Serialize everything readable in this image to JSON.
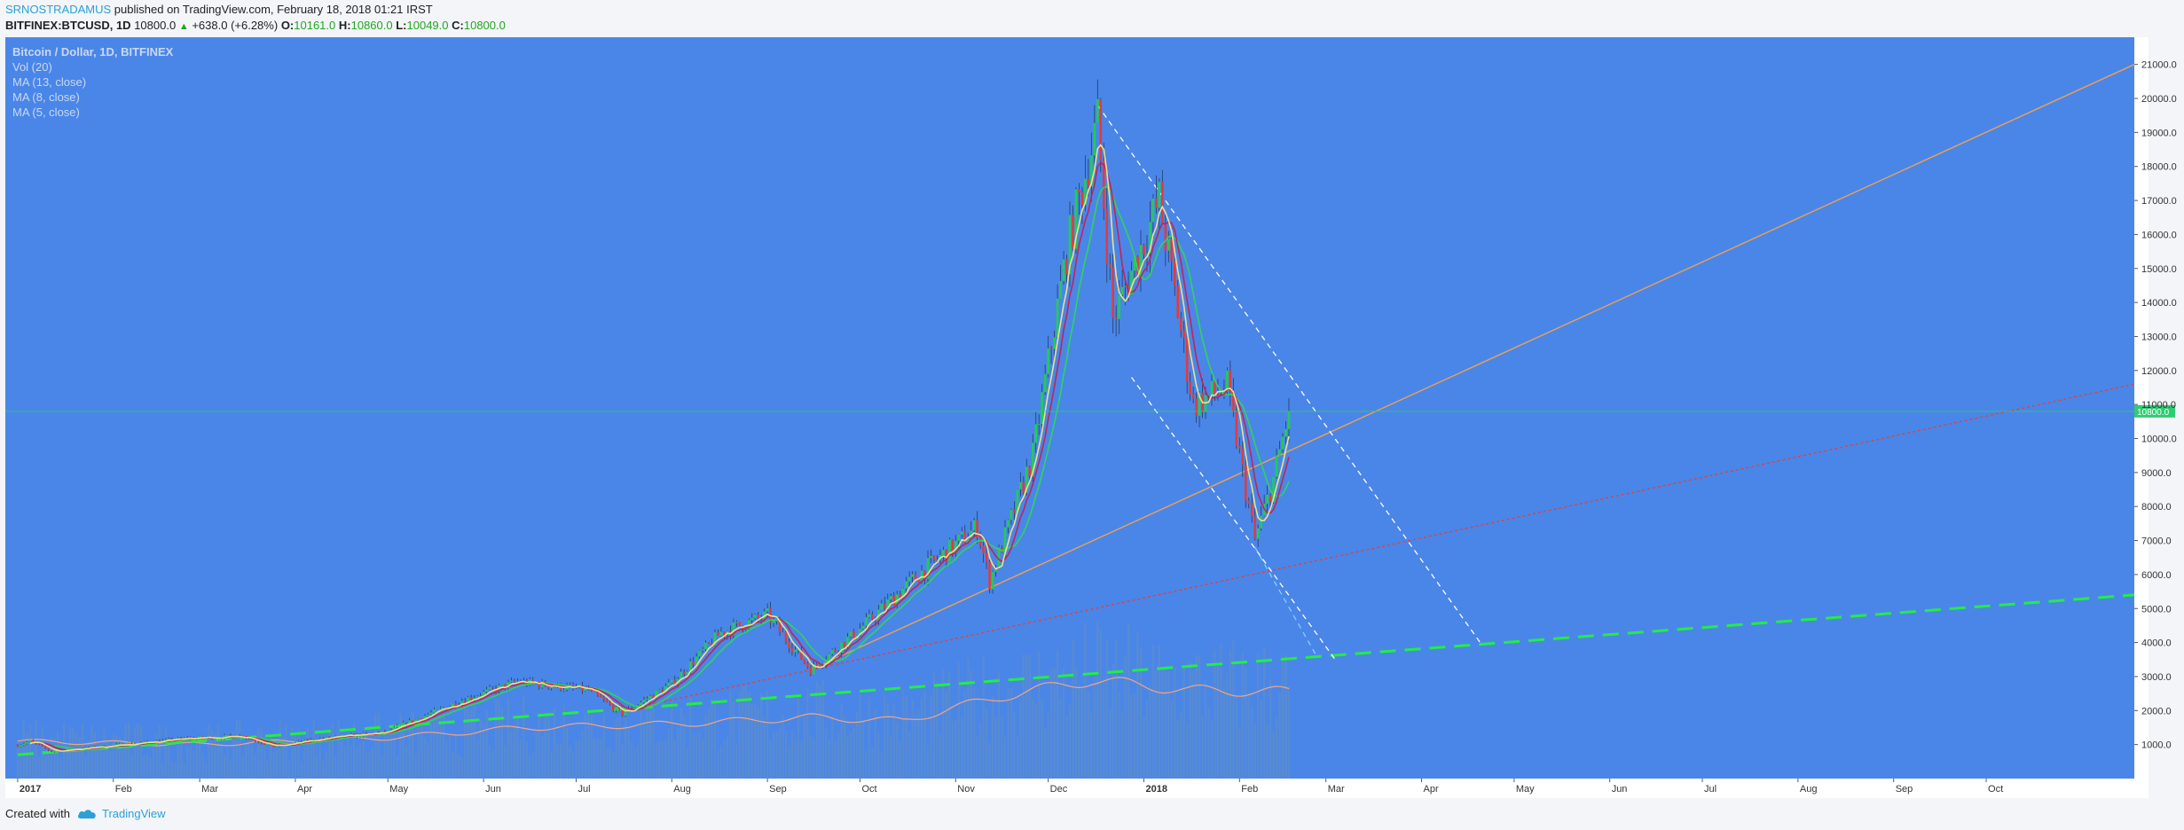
{
  "header": {
    "author": "SRNOSTRADAMUS",
    "published": " published on TradingView.com, February 18, 2018 01:21 IRST",
    "symbol": "BITFINEX:BTCUSD, 1D",
    "last": "10800.0",
    "change": "+638.0 (+6.28%)",
    "o_label": "O:",
    "o_value": "10161.0",
    "h_label": "H:",
    "h_value": "10860.0",
    "l_label": "L:",
    "l_value": "10049.0",
    "c_label": "C:",
    "c_value": "10800.0"
  },
  "legend": {
    "title": "Bitcoin / Dollar, 1D, BITFINEX",
    "items": [
      "Vol (20)",
      "MA (13, close)",
      "MA (8, close)",
      "MA (5, close)"
    ]
  },
  "footer": {
    "created_with": "Created with",
    "brand": "TradingView"
  },
  "colors": {
    "background": "#4a86e8",
    "up": "#22cc55",
    "down": "#e23b3b",
    "ma13": "#2fd45a",
    "ma8": "#c0245a",
    "ma5": "#f0e08a",
    "vol_ma": "#f4a582",
    "volume": "#5a8ccc",
    "orange_line": "#f0a050",
    "red_line": "#e04040",
    "green_line": "#22ee44",
    "channel": "#ffffff",
    "current_price": "#2ecc71"
  },
  "chart_data": {
    "type": "candlestick",
    "title": "Bitcoin / Dollar, 1D, BITFINEX",
    "ylim": [
      0,
      21800
    ],
    "y_ticks": [
      1000,
      2000,
      3000,
      4000,
      5000,
      6000,
      7000,
      8000,
      9000,
      10000,
      11000,
      12000,
      13000,
      14000,
      15000,
      16000,
      17000,
      18000,
      19000,
      20000,
      21000
    ],
    "y_tick_labels": [
      "1000.0",
      "2000.0",
      "3000.0",
      "4000.0",
      "5000.0",
      "6000.0",
      "7000.0",
      "8000.0",
      "9000.0",
      "10000.0",
      "11000.0",
      "12000.0",
      "13000.0",
      "14000.0",
      "15000.0",
      "16000.0",
      "17000.0",
      "18000.0",
      "19000.0",
      "20000.0",
      "21000.0"
    ],
    "x_ticks": [
      {
        "label": "2017",
        "date": "2017-01-01"
      },
      {
        "label": "Feb",
        "date": "2017-02-01"
      },
      {
        "label": "Mar",
        "date": "2017-03-01"
      },
      {
        "label": "Apr",
        "date": "2017-04-01"
      },
      {
        "label": "May",
        "date": "2017-05-01"
      },
      {
        "label": "Jun",
        "date": "2017-06-01"
      },
      {
        "label": "Jul",
        "date": "2017-07-01"
      },
      {
        "label": "Aug",
        "date": "2017-08-01"
      },
      {
        "label": "Sep",
        "date": "2017-09-01"
      },
      {
        "label": "Oct",
        "date": "2017-10-01"
      },
      {
        "label": "Nov",
        "date": "2017-11-01"
      },
      {
        "label": "Dec",
        "date": "2017-12-01"
      },
      {
        "label": "2018",
        "date": "2018-01-01"
      },
      {
        "label": "Feb",
        "date": "2018-02-01"
      },
      {
        "label": "Mar",
        "date": "2018-03-01"
      },
      {
        "label": "Apr",
        "date": "2018-04-01"
      },
      {
        "label": "May",
        "date": "2018-05-01"
      },
      {
        "label": "Jun",
        "date": "2018-06-01"
      },
      {
        "label": "Jul",
        "date": "2018-07-01"
      },
      {
        "label": "Aug",
        "date": "2018-08-01"
      },
      {
        "label": "Sep",
        "date": "2018-09-01"
      },
      {
        "label": "Oct",
        "date": "2018-10-01"
      }
    ],
    "x_range": [
      "2016-12-28",
      "2018-11-18"
    ],
    "current_price": 10800,
    "current_price_label": "10800.0",
    "price_path": [
      [
        "2017-01-01",
        980
      ],
      [
        "2017-01-05",
        1100
      ],
      [
        "2017-01-12",
        800
      ],
      [
        "2017-02-01",
        970
      ],
      [
        "2017-02-25",
        1180
      ],
      [
        "2017-03-15",
        1250
      ],
      [
        "2017-03-25",
        940
      ],
      [
        "2017-04-10",
        1180
      ],
      [
        "2017-04-30",
        1350
      ],
      [
        "2017-05-25",
        2300
      ],
      [
        "2017-06-12",
        2850
      ],
      [
        "2017-07-05",
        2600
      ],
      [
        "2017-07-16",
        1900
      ],
      [
        "2017-08-01",
        2800
      ],
      [
        "2017-08-17",
        4300
      ],
      [
        "2017-09-01",
        4800
      ],
      [
        "2017-09-15",
        3200
      ],
      [
        "2017-10-01",
        4400
      ],
      [
        "2017-10-20",
        6000
      ],
      [
        "2017-11-08",
        7400
      ],
      [
        "2017-11-12",
        5800
      ],
      [
        "2017-11-26",
        9500
      ],
      [
        "2017-12-07",
        15500
      ],
      [
        "2017-12-17",
        19300
      ],
      [
        "2017-12-22",
        13500
      ],
      [
        "2018-01-06",
        17000
      ],
      [
        "2018-01-17",
        11000
      ],
      [
        "2018-01-28",
        11500
      ],
      [
        "2018-02-06",
        7000
      ],
      [
        "2018-02-12",
        8800
      ],
      [
        "2018-02-17",
        10800
      ]
    ],
    "volume_ma_path": [
      [
        "2017-01-01",
        1100
      ],
      [
        "2017-03-01",
        1000
      ],
      [
        "2017-05-01",
        1200
      ],
      [
        "2017-06-15",
        1500
      ],
      [
        "2017-08-01",
        1600
      ],
      [
        "2017-09-15",
        1800
      ],
      [
        "2017-10-15",
        1700
      ],
      [
        "2017-11-15",
        2400
      ],
      [
        "2017-12-15",
        2900
      ],
      [
        "2018-01-15",
        2600
      ],
      [
        "2018-02-17",
        2550
      ]
    ],
    "trendlines": [
      {
        "name": "orange",
        "style": "solid",
        "from": [
          "2017-09-15",
          3200
        ],
        "to": [
          "2018-11-18",
          21000
        ]
      },
      {
        "name": "red",
        "style": "dotted",
        "from": [
          "2017-07-16",
          2000
        ],
        "to": [
          "2018-11-18",
          11600
        ]
      },
      {
        "name": "green",
        "style": "dashed",
        "from": [
          "2017-01-01",
          700
        ],
        "to": [
          "2018-11-18",
          5400
        ]
      },
      {
        "name": "channel-upper",
        "style": "dashed",
        "from": [
          "2017-12-17",
          19800
        ],
        "to": [
          "2018-04-20",
          4000
        ]
      },
      {
        "name": "channel-lower",
        "style": "dashed",
        "from": [
          "2017-12-28",
          11800
        ],
        "to": [
          "2018-03-04",
          3500
        ]
      },
      {
        "name": "channel-mid",
        "style": "dashed",
        "from": [
          "2018-02-06",
          6800
        ],
        "to": [
          "2018-02-26",
          3600
        ]
      }
    ]
  }
}
